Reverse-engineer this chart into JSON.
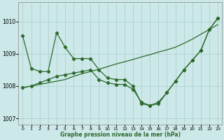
{
  "xlabel": "Graphe pression niveau de la mer (hPa)",
  "background_color": "#cce8e8",
  "grid_color": "#aacccc",
  "line_color": "#2d6a2d",
  "ylim": [
    1006.8,
    1010.6
  ],
  "xlim": [
    -0.5,
    23.5
  ],
  "yticks": [
    1007,
    1008,
    1009,
    1010
  ],
  "xticks": [
    0,
    1,
    2,
    3,
    4,
    5,
    6,
    7,
    8,
    9,
    10,
    11,
    12,
    13,
    14,
    15,
    16,
    17,
    18,
    19,
    20,
    21,
    22,
    23
  ],
  "line1_x": [
    0,
    1,
    2,
    3,
    4,
    5,
    6,
    7,
    8,
    9,
    10,
    11,
    12,
    13,
    14,
    15,
    16,
    17,
    18,
    19,
    20,
    21,
    22,
    23
  ],
  "line1_y": [
    1007.95,
    1008.0,
    1008.05,
    1008.1,
    1008.15,
    1008.2,
    1008.3,
    1008.38,
    1008.45,
    1008.52,
    1008.6,
    1008.68,
    1008.75,
    1008.82,
    1008.9,
    1008.97,
    1009.05,
    1009.12,
    1009.2,
    1009.32,
    1009.45,
    1009.6,
    1009.75,
    1009.9
  ],
  "line2_x": [
    0,
    1,
    2,
    3,
    4,
    5,
    6,
    7,
    8,
    9,
    10,
    11,
    12,
    13,
    14,
    15,
    16,
    17,
    18,
    19,
    20,
    21,
    22,
    23
  ],
  "line2_y": [
    1009.55,
    1008.55,
    1008.45,
    1008.45,
    1009.65,
    1009.2,
    1008.85,
    1008.85,
    1008.85,
    1008.5,
    1008.25,
    1008.2,
    1008.2,
    1008.0,
    1007.45,
    1007.4,
    1007.45,
    1007.8,
    1008.15,
    1008.5,
    1008.8,
    1009.1,
    1009.75,
    1010.1
  ],
  "line3_x": [
    0,
    1,
    2,
    3,
    4,
    5,
    6,
    7,
    8,
    9,
    10,
    11,
    12,
    13,
    14,
    15,
    16,
    17,
    18,
    19,
    20,
    21,
    22,
    23
  ],
  "line3_y": [
    1007.95,
    1008.0,
    1008.1,
    1008.2,
    1008.3,
    1008.35,
    1008.4,
    1008.45,
    1008.5,
    1008.2,
    1008.1,
    1008.05,
    1008.05,
    1007.9,
    1007.5,
    1007.4,
    1007.5,
    1007.8,
    1008.15,
    1008.5,
    1008.8,
    1009.1,
    1009.75,
    1010.1
  ]
}
